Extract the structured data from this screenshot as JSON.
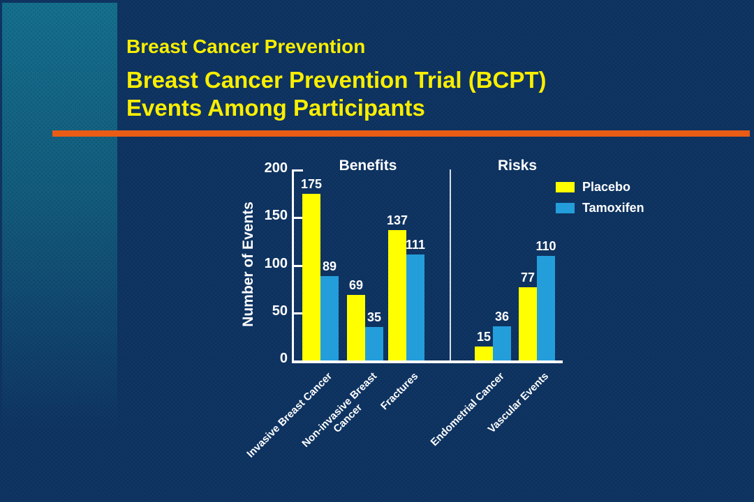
{
  "slide": {
    "title_lines": [
      "Breast Cancer Prevention",
      "Breast Cancer Prevention Trial (BCPT)",
      "Events Among Participants"
    ]
  },
  "colors": {
    "background": "#0F3563",
    "side_panel_teal": "#15708E",
    "rule_orange": "#E85C15",
    "title_yellow": "#F9EE00",
    "axis_white": "#FFFFFF"
  },
  "chart_data": {
    "type": "bar",
    "title": "",
    "xlabel": "",
    "ylabel": "Number of Events",
    "ylim": [
      0,
      200
    ],
    "yticks": [
      0,
      50,
      100,
      150,
      200
    ],
    "grid": false,
    "legend_position": "top-right",
    "sections": [
      {
        "label": "Benefits",
        "category_indexes": [
          0,
          1,
          2
        ]
      },
      {
        "label": "Risks",
        "category_indexes": [
          3,
          4
        ]
      }
    ],
    "categories": [
      "Invasive Breast Cancer",
      "Non-invasive Breast\nCancer",
      "Fractures",
      "Endometrial Cancer",
      "Vascular Events"
    ],
    "series": [
      {
        "name": "Placebo",
        "color": "#FFFF00",
        "values": [
          175,
          69,
          137,
          15,
          77
        ]
      },
      {
        "name": "Tamoxifen",
        "color": "#249EDB",
        "values": [
          89,
          35,
          111,
          36,
          110
        ]
      }
    ]
  }
}
